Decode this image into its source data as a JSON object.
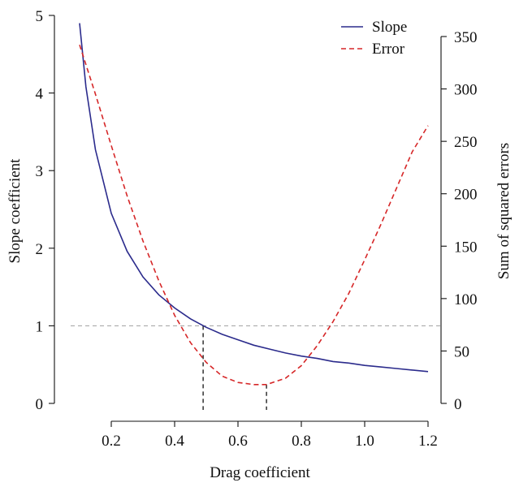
{
  "chart_data": {
    "type": "line",
    "xlabel": "Drag coefficient",
    "ylabel_left": "Slope coefficient",
    "ylabel_right": "Sum of squared errors",
    "xlim": [
      0.1,
      1.2
    ],
    "ylim_left": [
      0,
      5
    ],
    "ylim_right": [
      0,
      350
    ],
    "x_ticks": [
      0.2,
      0.4,
      0.6,
      0.8,
      1.0,
      1.2
    ],
    "x_tick_labels": [
      "0.2",
      "0.4",
      "0.6",
      "0.8",
      "1.0",
      "1.2"
    ],
    "y_left_ticks": [
      0,
      1,
      2,
      3,
      4,
      5
    ],
    "y_left_tick_labels": [
      "0",
      "1",
      "2",
      "3",
      "4",
      "5"
    ],
    "y_right_ticks": [
      0,
      50,
      100,
      150,
      200,
      250,
      300,
      350
    ],
    "y_right_tick_labels": [
      "0",
      "50",
      "100",
      "150",
      "200",
      "250",
      "300",
      "350"
    ],
    "grid": false,
    "legend_position": "top-right",
    "series": [
      {
        "name": "Slope",
        "axis": "left",
        "color": "#2b2b8c",
        "style": "solid",
        "x": [
          0.1,
          0.12,
          0.15,
          0.2,
          0.25,
          0.3,
          0.35,
          0.4,
          0.45,
          0.5,
          0.55,
          0.6,
          0.65,
          0.7,
          0.75,
          0.8,
          0.85,
          0.9,
          0.95,
          1.0,
          1.05,
          1.1,
          1.15,
          1.2
        ],
        "values": [
          4.9,
          4.08,
          3.27,
          2.45,
          1.96,
          1.63,
          1.4,
          1.23,
          1.09,
          0.98,
          0.89,
          0.82,
          0.75,
          0.7,
          0.65,
          0.61,
          0.58,
          0.54,
          0.52,
          0.49,
          0.47,
          0.45,
          0.43,
          0.41
        ]
      },
      {
        "name": "Error",
        "axis": "right",
        "color": "#d62728",
        "style": "dashed",
        "x": [
          0.1,
          0.15,
          0.2,
          0.25,
          0.3,
          0.35,
          0.4,
          0.45,
          0.5,
          0.55,
          0.6,
          0.65,
          0.69,
          0.75,
          0.8,
          0.85,
          0.9,
          0.95,
          1.0,
          1.05,
          1.1,
          1.15,
          1.2
        ],
        "values": [
          342,
          295,
          246,
          198,
          155,
          117,
          84,
          58,
          39,
          26,
          20,
          18,
          18,
          24,
          36,
          55,
          78,
          105,
          137,
          170,
          205,
          240,
          265
        ]
      }
    ],
    "reference_lines": [
      {
        "type": "horizontal",
        "axis": "left",
        "y": 1,
        "color": "#9e9e9e",
        "style": "dashed"
      },
      {
        "type": "vertical",
        "x": 0.49,
        "from_axis": "left",
        "to": 1,
        "color": "#111111",
        "style": "dashed"
      },
      {
        "type": "vertical",
        "x": 0.69,
        "from_axis": "right",
        "to": 18,
        "color": "#111111",
        "style": "dashed"
      }
    ]
  }
}
